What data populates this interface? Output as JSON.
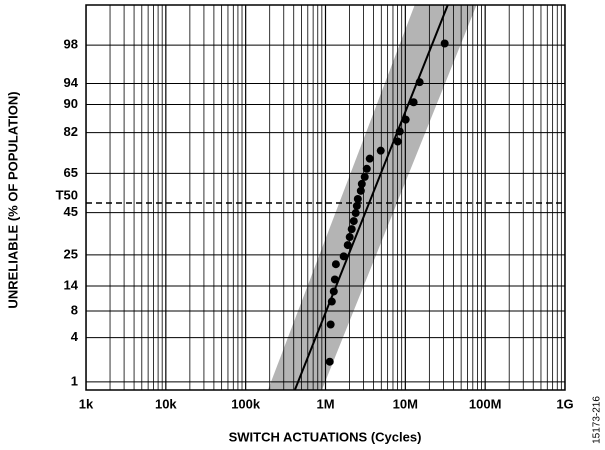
{
  "chart_data": {
    "type": "scatter",
    "xlabel": "SWITCH ACTUATIONS (Cycles)",
    "ylabel": "UNRELIABLE (% OF POPULATION)",
    "side_note": "15173-216",
    "xscale": "log",
    "yscale": "probability",
    "xlim": [
      1000,
      1000000000
    ],
    "ylim": [
      0.75,
      99.5
    ],
    "xticks": [
      {
        "value": 1000,
        "label": "1k"
      },
      {
        "value": 10000,
        "label": "10k"
      },
      {
        "value": 100000,
        "label": "100k"
      },
      {
        "value": 1000000,
        "label": "1M"
      },
      {
        "value": 10000000,
        "label": "10M"
      },
      {
        "value": 100000000,
        "label": "100M"
      },
      {
        "value": 1000000000,
        "label": "1G"
      }
    ],
    "yticks": [
      1,
      4,
      8,
      14,
      25,
      45,
      65,
      82,
      90,
      94,
      98
    ],
    "grid": true,
    "x_minor_grid": true,
    "reference_line": {
      "value": 50,
      "label": "T50",
      "style": "dashed"
    },
    "fit_line": {
      "x": [
        413000,
        34000000
      ],
      "y": [
        0.75,
        99.5
      ],
      "color": "#000000"
    },
    "band": {
      "lower_x": [
        190000,
        13100000
      ],
      "upper_x": [
        900000,
        78000000
      ],
      "y": [
        0.75,
        99.5
      ],
      "color": "#b4b4b4"
    },
    "series": [
      {
        "name": "samples",
        "color": "#000000",
        "x": [
          1130000,
          1160000,
          1200000,
          1270000,
          1310000,
          1350000,
          1690000,
          1900000,
          2010000,
          2130000,
          2260000,
          2390000,
          2470000,
          2540000,
          2770000,
          2850000,
          3100000,
          3290000,
          3580000,
          4920000,
          8030000,
          8510000,
          10100000,
          12700000,
          15100000,
          31100000
        ],
        "values": [
          1.95,
          5.7,
          10.0,
          12.5,
          16.0,
          21.3,
          24.4,
          29.2,
          32.9,
          36.7,
          40.7,
          44.8,
          48.5,
          52.1,
          56.3,
          59.8,
          63.3,
          67.2,
          71.8,
          75.2,
          78.8,
          82.4,
          86.1,
          90.5,
          94.2,
          98.1
        ]
      }
    ]
  }
}
